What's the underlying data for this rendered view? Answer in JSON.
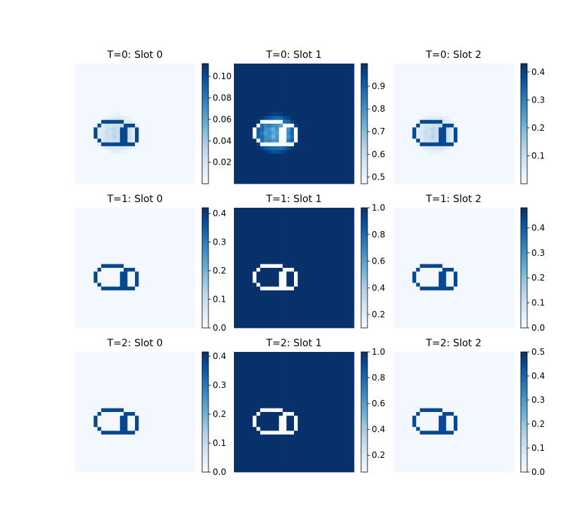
{
  "chart_data": {
    "type": "heatmap",
    "colormap": "Blues",
    "grid": false,
    "axes_visible": false,
    "layout": {
      "rows": 3,
      "cols": 3
    },
    "panels": [
      {
        "title": "T=0: Slot 0",
        "vmin": 0.0,
        "vmax": 0.112,
        "ticks": [
          "0.02",
          "0.04",
          "0.06",
          "0.08",
          "0.10"
        ],
        "tick_values": [
          0.02,
          0.04,
          0.06,
          0.08,
          0.1
        ],
        "mask_style": "soft",
        "outline_color": "dark"
      },
      {
        "title": "T=0: Slot 1",
        "vmin": 0.47,
        "vmax": 1.0,
        "ticks": [
          "0.5",
          "0.6",
          "0.7",
          "0.8",
          "0.9"
        ],
        "tick_values": [
          0.5,
          0.6,
          0.7,
          0.8,
          0.9
        ],
        "mask_style": "inverse",
        "outline_color": "light"
      },
      {
        "title": "T=0: Slot 2",
        "vmin": 0.0,
        "vmax": 0.43,
        "ticks": [
          "0.1",
          "0.2",
          "0.3",
          "0.4"
        ],
        "tick_values": [
          0.1,
          0.2,
          0.3,
          0.4
        ],
        "mask_style": "soft",
        "outline_color": "dark"
      },
      {
        "title": "T=1: Slot 0",
        "vmin": 0.0,
        "vmax": 0.42,
        "ticks": [
          "0.0",
          "0.1",
          "0.2",
          "0.3",
          "0.4"
        ],
        "tick_values": [
          0.0,
          0.1,
          0.2,
          0.3,
          0.4
        ],
        "mask_style": "empty",
        "outline_color": "dark"
      },
      {
        "title": "T=1: Slot 1",
        "vmin": 0.1,
        "vmax": 1.0,
        "ticks": [
          "0.2",
          "0.4",
          "0.6",
          "0.8",
          "1.0"
        ],
        "tick_values": [
          0.2,
          0.4,
          0.6,
          0.8,
          1.0
        ],
        "mask_style": "full",
        "outline_color": "light"
      },
      {
        "title": "T=1: Slot 2",
        "vmin": 0.0,
        "vmax": 0.48,
        "ticks": [
          "0.0",
          "0.1",
          "0.2",
          "0.3",
          "0.4"
        ],
        "tick_values": [
          0.0,
          0.1,
          0.2,
          0.3,
          0.4
        ],
        "mask_style": "empty",
        "outline_color": "dark"
      },
      {
        "title": "T=2: Slot 0",
        "vmin": 0.0,
        "vmax": 0.415,
        "ticks": [
          "0.0",
          "0.1",
          "0.2",
          "0.3",
          "0.4"
        ],
        "tick_values": [
          0.0,
          0.1,
          0.2,
          0.3,
          0.4
        ],
        "mask_style": "empty",
        "outline_color": "dark"
      },
      {
        "title": "T=2: Slot 1",
        "vmin": 0.07,
        "vmax": 1.0,
        "ticks": [
          "0.2",
          "0.4",
          "0.6",
          "0.8",
          "1.0"
        ],
        "tick_values": [
          0.2,
          0.4,
          0.6,
          0.8,
          1.0
        ],
        "mask_style": "full",
        "outline_color": "light"
      },
      {
        "title": "T=2: Slot 2",
        "vmin": 0.0,
        "vmax": 0.5,
        "ticks": [
          "0.0",
          "0.1",
          "0.2",
          "0.3",
          "0.4",
          "0.5"
        ],
        "tick_values": [
          0.0,
          0.1,
          0.2,
          0.3,
          0.4,
          0.5
        ],
        "mask_style": "empty",
        "outline_color": "dark"
      }
    ]
  }
}
